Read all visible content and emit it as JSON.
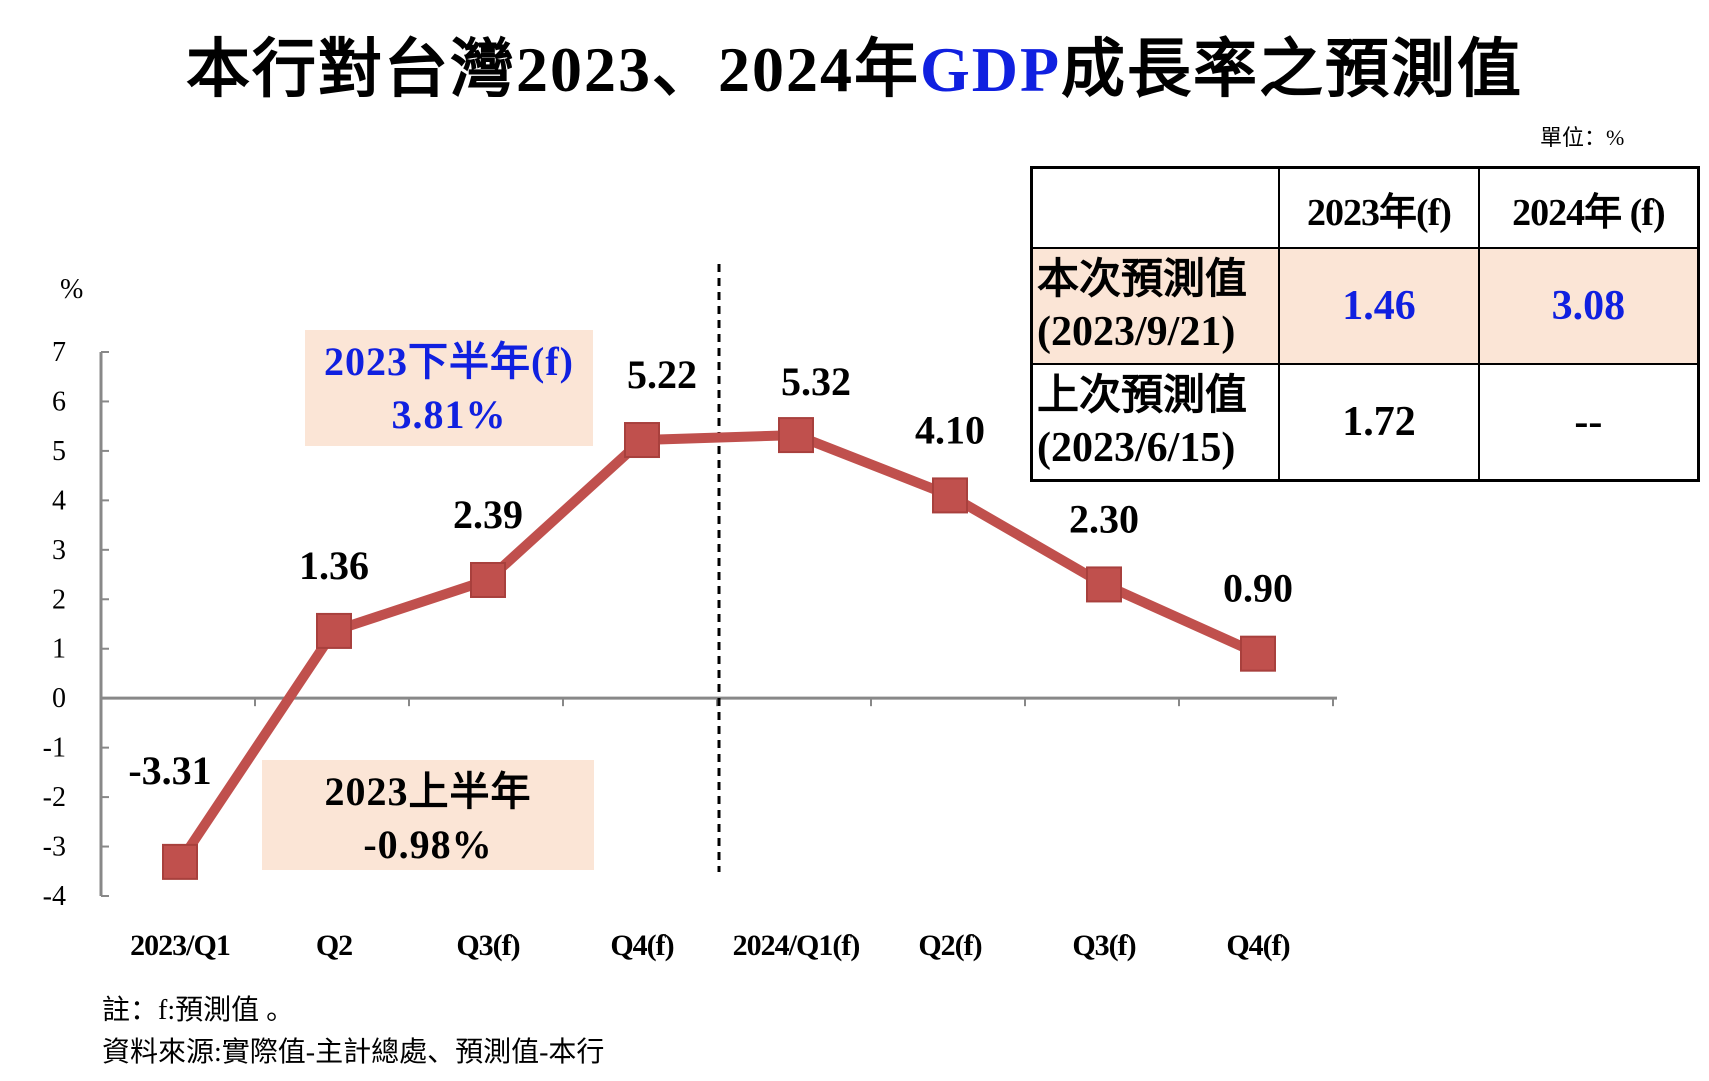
{
  "title": {
    "prefix": "本行對台灣2023、2024年",
    "highlight": "GDP",
    "suffix": "成長率之預測值"
  },
  "unit": "單位：%",
  "colors": {
    "line": "#c0504d",
    "marker": "#c0504d",
    "box_fill": "#fbe5d6",
    "highlight_text": "#1020e0"
  },
  "chart_data": {
    "type": "line",
    "ylabel": "%",
    "ylim": [
      -4,
      7
    ],
    "yticks": [
      "7",
      "6",
      "5",
      "4",
      "3",
      "2",
      "1",
      "0",
      "-1",
      "-2",
      "-3",
      "-4"
    ],
    "categories": [
      "2023/Q1",
      "Q2",
      "Q3(f)",
      "Q4(f)",
      "2024/Q1(f)",
      "Q2(f)",
      "Q3(f)",
      "Q4(f)"
    ],
    "values": [
      -3.31,
      1.36,
      2.39,
      5.22,
      5.32,
      4.1,
      2.3,
      0.9
    ],
    "value_labels": [
      "-3.31",
      "1.36",
      "2.39",
      "5.22",
      "5.32",
      "4.10",
      "2.30",
      "0.90"
    ],
    "annotations": [
      {
        "line1": "2023下半年(f)",
        "line2": "3.81%",
        "color": "#1020e0"
      },
      {
        "line1": "2023上半年",
        "line2": "-0.98%",
        "color": "#000000"
      }
    ],
    "divider_after": "Q4(f)"
  },
  "table": {
    "headers": [
      "",
      "2023年(f)",
      "2024年 (f)"
    ],
    "rows": [
      {
        "label1": "本次預測值",
        "label2": "(2023/9/21)",
        "values": [
          "1.46",
          "3.08"
        ]
      },
      {
        "label1": "上次預測值",
        "label2": "(2023/6/15)",
        "values": [
          "1.72",
          "--"
        ]
      }
    ]
  },
  "notes": [
    "註：f:預測值 。",
    "資料來源:實際值-主計總處、預測值-本行"
  ]
}
